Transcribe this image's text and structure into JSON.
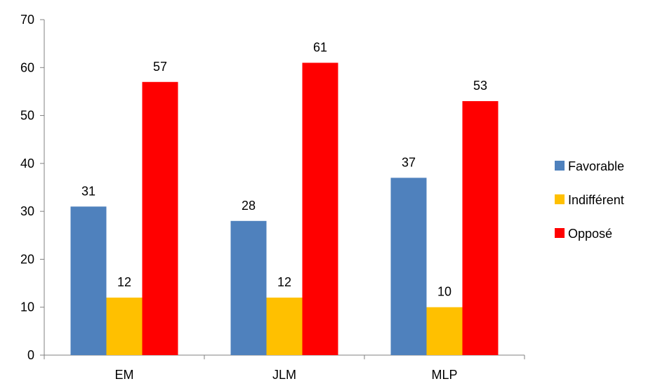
{
  "chart_data": {
    "type": "bar",
    "title": "",
    "xlabel": "",
    "ylabel": "",
    "categories": [
      "EM",
      "JLM",
      "MLP"
    ],
    "series": [
      {
        "name": "Favorable",
        "color": "#4F81BD",
        "values": [
          31,
          28,
          37
        ]
      },
      {
        "name": "Indifférent",
        "color": "#FFC000",
        "values": [
          12,
          12,
          10
        ]
      },
      {
        "name": "Opposé",
        "color": "#FF0000",
        "values": [
          57,
          61,
          53
        ]
      }
    ],
    "ylim": [
      0,
      70
    ],
    "yticks": [
      0,
      10,
      20,
      30,
      40,
      50,
      60,
      70
    ],
    "grid": false,
    "legend_position": "right",
    "data_labels": true
  }
}
